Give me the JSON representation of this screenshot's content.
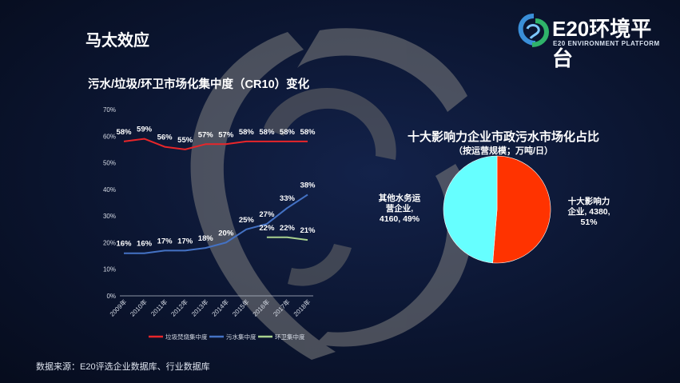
{
  "slide": {
    "title": "马太效应",
    "source": "数据来源：E20评选企业数据库、行业数据库"
  },
  "logo": {
    "name": "E20环境平台",
    "subtitle": "E20 ENVIRONMENT PLATFORM",
    "colors": [
      "#3a8fd9",
      "#2fb36a"
    ]
  },
  "chart_data": [
    {
      "type": "line",
      "title": "污水/垃圾/环卫市场化集中度（CR10）变化",
      "categories": [
        "2009年",
        "2010年",
        "2011年",
        "2012年",
        "2013年",
        "2014年",
        "2015年",
        "2016年",
        "2017年",
        "2018年"
      ],
      "ylim": [
        0,
        70
      ],
      "yticks": [
        "0%",
        "10%",
        "20%",
        "30%",
        "40%",
        "50%",
        "60%",
        "70%"
      ],
      "grid": false,
      "legend_position": "bottom",
      "series": [
        {
          "name": "垃圾焚烧集中度",
          "color": "#e8262a",
          "values": [
            58,
            59,
            56,
            55,
            57,
            57,
            58,
            58,
            58,
            58
          ],
          "labels": [
            "58%",
            "59%",
            "56%",
            "55%",
            "57%",
            "57%",
            "58%",
            "58%",
            "58%",
            "58%"
          ]
        },
        {
          "name": "污水集中度",
          "color": "#4472c4",
          "values": [
            16,
            16,
            17,
            17,
            18,
            20,
            25,
            27,
            33,
            38
          ],
          "labels": [
            "16%",
            "16%",
            "17%",
            "17%",
            "18%",
            "20%",
            "25%",
            "27%",
            "33%",
            "38%"
          ]
        },
        {
          "name": "环卫集中度",
          "color": "#a9d18e",
          "values": [
            null,
            null,
            null,
            null,
            null,
            null,
            null,
            22,
            22,
            21
          ],
          "labels": [
            "",
            "",
            "",
            "",
            "",
            "",
            "",
            "22%",
            "22%",
            "21%"
          ]
        }
      ]
    },
    {
      "type": "pie",
      "title": "十大影响力企业市政污水市场化占比",
      "subtitle": "（按运营规模；万吨/日）",
      "slices": [
        {
          "name": "十大影响力企业",
          "value": 4380,
          "percent": 51,
          "color": "#ff3300",
          "label_lines": [
            "十大影响力",
            "企业, 4380,",
            "51%"
          ]
        },
        {
          "name": "其他水务运营企业",
          "value": 4160,
          "percent": 49,
          "color": "#66ffff",
          "label_lines": [
            "其他水务运",
            "营企业,",
            "4160, 49%"
          ]
        }
      ]
    }
  ]
}
